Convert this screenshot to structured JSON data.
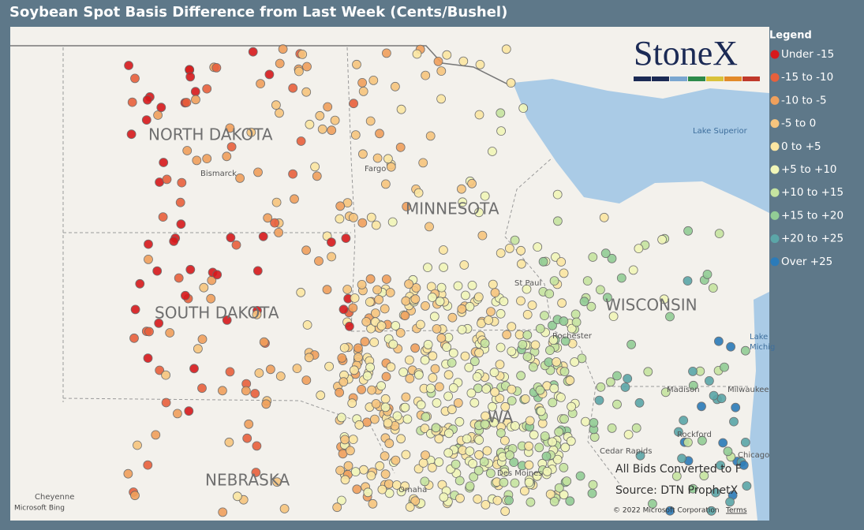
{
  "header": {
    "title": "Soybean Spot Basis Difference from Last Week (Cents/Bushel)"
  },
  "legend": {
    "title": "Legend",
    "items": [
      {
        "label": "Under -15",
        "color": "#d7191c"
      },
      {
        "label": "-15 to -10",
        "color": "#e8603c"
      },
      {
        "label": "-10 to -5",
        "color": "#f0a05c"
      },
      {
        "label": "-5 to 0",
        "color": "#f7c57e"
      },
      {
        "label": "0 to +5",
        "color": "#fbe6a2"
      },
      {
        "label": "+5 to +10",
        "color": "#f1f6b8"
      },
      {
        "label": "+10 to +15",
        "color": "#c6e4a0"
      },
      {
        "label": "+15 to +20",
        "color": "#92cd95"
      },
      {
        "label": "+20 to +25",
        "color": "#5ba6a8"
      },
      {
        "label": "Over +25",
        "color": "#2b7bb9"
      }
    ]
  },
  "logo": "StoneX",
  "map": {
    "states": [
      "NORTH DAKOTA",
      "MINNESOTA",
      "SOUTH DAKOTA",
      "WISCONSIN",
      "NEBRASKA",
      "WA"
    ],
    "cities": [
      "Bismarck",
      "Fargo",
      "St Paul",
      "Rochester",
      "Madison",
      "Milwaukee",
      "Rockford",
      "Chicago",
      "Cheyenne",
      "Omaha",
      "Cedar Rapids",
      "Des Moines"
    ],
    "water": [
      "Lake Superior",
      "Lake",
      "Michig"
    ],
    "attribution": {
      "bing": "Microsoft Bing",
      "copyright": "© 2022 Microsoft Corporation",
      "terms": "Terms"
    }
  },
  "notes": [
    "All Bids Converted to F",
    "Source: DTN ProphetX"
  ]
}
